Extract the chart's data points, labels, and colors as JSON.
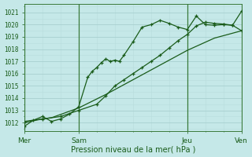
{
  "bg_color": "#c5e8e8",
  "grid_major_color": "#a8d0d0",
  "grid_minor_color": "#b8dcdc",
  "line_color": "#1a5c1a",
  "xlabel": "Pression niveau de la mer( hPa )",
  "ylim": [
    1011.3,
    1021.7
  ],
  "yticks": [
    1012,
    1013,
    1014,
    1015,
    1016,
    1017,
    1018,
    1019,
    1020,
    1021
  ],
  "xlim": [
    0,
    96
  ],
  "vline_x": [
    0,
    24,
    72,
    96
  ],
  "xtick_positions": [
    0,
    24,
    72,
    96
  ],
  "xtick_labels": [
    "Mer",
    "Sam",
    "Jeu",
    "Ven"
  ],
  "line1_x": [
    0,
    4,
    8,
    12,
    16,
    20,
    24,
    28,
    30,
    32,
    34,
    36,
    38,
    40,
    42,
    44,
    48,
    52,
    56,
    60,
    64,
    68,
    72,
    76,
    80,
    84,
    88,
    92,
    96
  ],
  "line1_y": [
    1011.7,
    1012.2,
    1012.5,
    1012.1,
    1012.3,
    1012.7,
    1013.3,
    1015.7,
    1016.2,
    1016.5,
    1016.9,
    1017.2,
    1017.0,
    1017.1,
    1017.0,
    1017.5,
    1018.6,
    1019.8,
    1020.0,
    1020.35,
    1020.1,
    1019.8,
    1019.6,
    1020.7,
    1020.0,
    1019.95,
    1020.0,
    1019.95,
    1019.5
  ],
  "line2_x": [
    0,
    8,
    16,
    24,
    32,
    36,
    40,
    44,
    48,
    52,
    56,
    60,
    64,
    68,
    72,
    76,
    80,
    84,
    88,
    92,
    96
  ],
  "line2_y": [
    1012.0,
    1012.3,
    1012.5,
    1013.0,
    1013.5,
    1014.2,
    1015.0,
    1015.5,
    1016.0,
    1016.5,
    1017.0,
    1017.5,
    1018.1,
    1018.7,
    1019.2,
    1019.9,
    1020.2,
    1020.1,
    1020.05,
    1019.95,
    1021.1
  ],
  "line3_x": [
    0,
    12,
    24,
    36,
    48,
    60,
    72,
    84,
    96
  ],
  "line3_y": [
    1012.1,
    1012.4,
    1013.2,
    1014.3,
    1015.5,
    1016.7,
    1017.9,
    1018.9,
    1019.5
  ]
}
